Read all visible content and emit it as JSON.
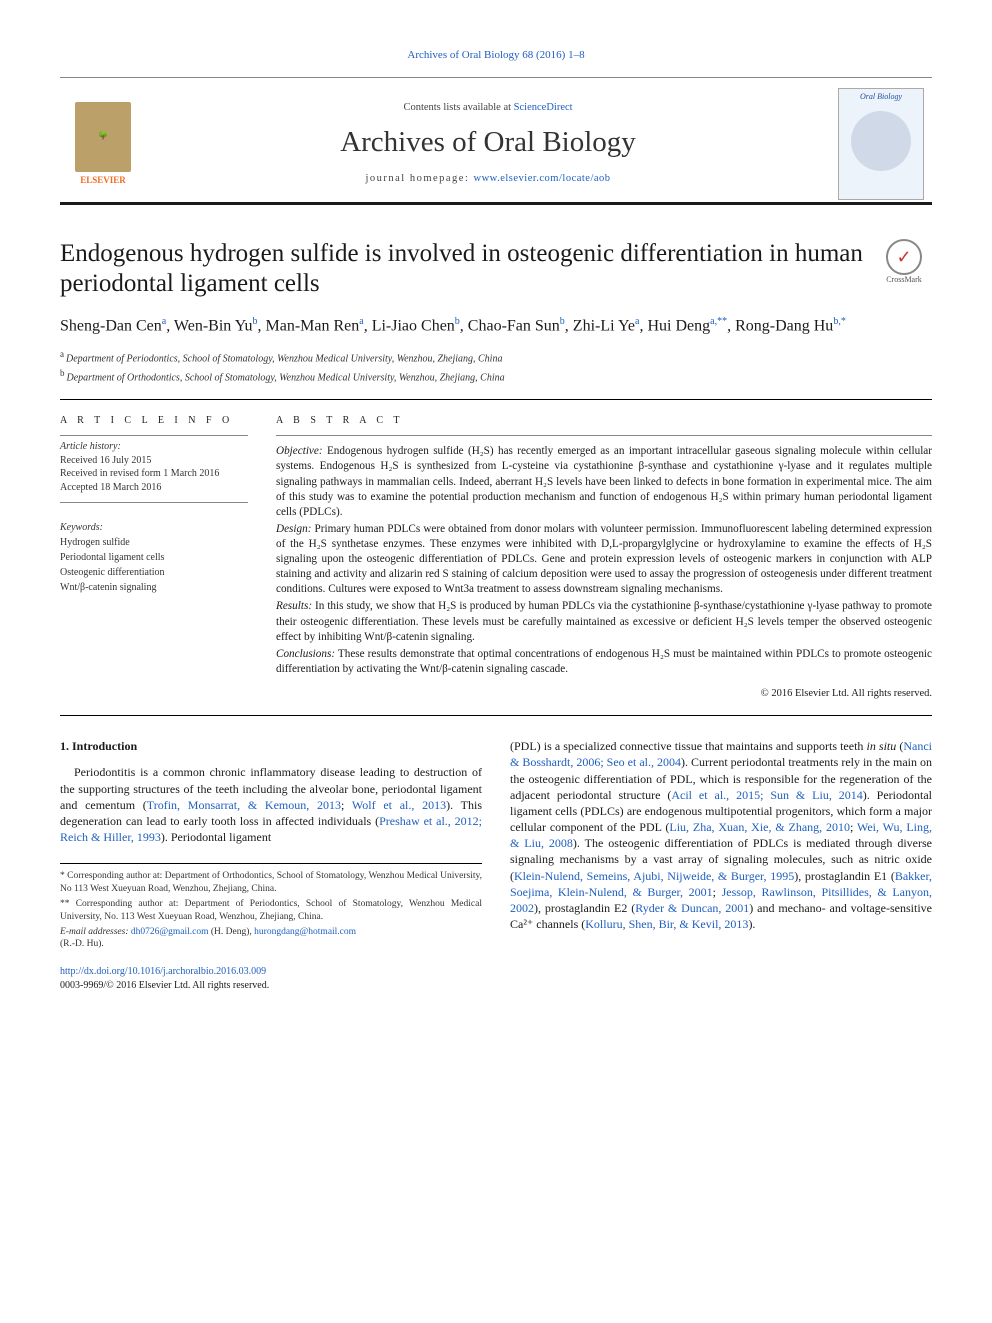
{
  "top_link": "Archives of Oral Biology 68 (2016) 1–8",
  "header": {
    "sd_prefix": "Contents lists available at ",
    "sd_link": "ScienceDirect",
    "journal_name": "Archives of Oral Biology",
    "home_prefix": "journal homepage: ",
    "home_url": "www.elsevier.com/locate/aob",
    "elsevier_label": "ELSEVIER",
    "cover_label": "Oral Biology"
  },
  "crossmark_label": "CrossMark",
  "title": "Endogenous hydrogen sulfide is involved in osteogenic differentiation in human periodontal ligament cells",
  "authors_html": "Sheng-Dan Cen<sup>a</sup>, Wen-Bin Yu<sup>b</sup>, Man-Man Ren<sup>a</sup>, Li-Jiao Chen<sup>b</sup>, Chao-Fan Sun<sup>b</sup>, Zhi-Li Ye<sup>a</sup>, Hui Deng<sup>a,**</sup>, Rong-Dang Hu<sup>b,*</sup>",
  "affiliations": [
    {
      "sup": "a",
      "text": "Department of Periodontics, School of Stomatology, Wenzhou Medical University, Wenzhou, Zhejiang, China"
    },
    {
      "sup": "b",
      "text": "Department of Orthodontics, School of Stomatology, Wenzhou Medical University, Wenzhou, Zhejiang, China"
    }
  ],
  "article_info": {
    "head": "A R T I C L E  I N F O",
    "history_label": "Article history:",
    "history": [
      "Received 16 July 2015",
      "Received in revised form 1 March 2016",
      "Accepted 18 March 2016"
    ],
    "keywords_label": "Keywords:",
    "keywords": [
      "Hydrogen sulfide",
      "Periodontal ligament cells",
      "Osteogenic differentiation",
      "Wnt/β-catenin signaling"
    ]
  },
  "abstract": {
    "head": "A B S T R A C T",
    "sections": [
      {
        "label": "Objective:",
        "text": "Endogenous hydrogen sulfide (H₂S) has recently emerged as an important intracellular gaseous signaling molecule within cellular systems. Endogenous H₂S is synthesized from L-cysteine via cystathionine β-synthase and cystathionine γ-lyase and it regulates multiple signaling pathways in mammalian cells. Indeed, aberrant H₂S levels have been linked to defects in bone formation in experimental mice. The aim of this study was to examine the potential production mechanism and function of endogenous H₂S within primary human periodontal ligament cells (PDLCs)."
      },
      {
        "label": "Design:",
        "text": "Primary human PDLCs were obtained from donor molars with volunteer permission. Immunofluorescent labeling determined expression of the H₂S synthetase enzymes. These enzymes were inhibited with D,L-propargylglycine or hydroxylamine to examine the effects of H₂S signaling upon the osteogenic differentiation of PDLCs. Gene and protein expression levels of osteogenic markers in conjunction with ALP staining and activity and alizarin red S staining of calcium deposition were used to assay the progression of osteogenesis under different treatment conditions. Cultures were exposed to Wnt3a treatment to assess downstream signaling mechanisms."
      },
      {
        "label": "Results:",
        "text": "In this study, we show that H₂S is produced by human PDLCs via the cystathionine β-synthase/cystathionine γ-lyase pathway to promote their osteogenic differentiation. These levels must be carefully maintained as excessive or deficient H₂S levels temper the observed osteogenic effect by inhibiting Wnt/β-catenin signaling."
      },
      {
        "label": "Conclusions:",
        "text": "These results demonstrate that optimal concentrations of endogenous H₂S must be maintained within PDLCs to promote osteogenic differentiation by activating the Wnt/β-catenin signaling cascade."
      }
    ],
    "copyright": "© 2016 Elsevier Ltd. All rights reserved."
  },
  "body": {
    "section_number": "1. Introduction",
    "left_para": "Periodontitis is a common chronic inflammatory disease leading to destruction of the supporting structures of the teeth including the alveolar bone, periodontal ligament and cementum (<span class=\"ref\">Trofin, Monsarrat, & Kemoun, 2013</span>; <span class=\"ref\">Wolf et al., 2013</span>). This degeneration can lead to early tooth loss in affected individuals (<span class=\"ref\">Preshaw et al., 2012; Reich & Hiller, 1993</span>). Periodontal ligament",
    "right_para": "(PDL) is a specialized connective tissue that maintains and supports teeth <i>in situ</i> (<span class=\"ref\">Nanci & Bosshardt, 2006; Seo et al., 2004</span>). Current periodontal treatments rely in the main on the osteogenic differentiation of PDL, which is responsible for the regeneration of the adjacent periodontal structure (<span class=\"ref\">Acil et al., 2015; Sun & Liu, 2014</span>). Periodontal ligament cells (PDLCs) are endogenous multipotential progenitors, which form a major cellular component of the PDL (<span class=\"ref\">Liu, Zha, Xuan, Xie, & Zhang, 2010</span>; <span class=\"ref\">Wei, Wu, Ling, & Liu, 2008</span>). The osteogenic differentiation of PDLCs is mediated through diverse signaling mechanisms by a vast array of signaling molecules, such as nitric oxide (<span class=\"ref\">Klein-Nulend, Semeins, Ajubi, Nijweide, & Burger, 1995</span>), prostaglandin E1 (<span class=\"ref\">Bakker, Soejima, Klein-Nulend, & Burger, 2001</span>; <span class=\"ref\">Jessop, Rawlinson, Pitsillides, & Lanyon, 2002</span>), prostaglandin E2 (<span class=\"ref\">Ryder & Duncan, 2001</span>) and mechano- and voltage-sensitive Ca²⁺ channels (<span class=\"ref\">Kolluru, Shen, Bir, & Kevil, 2013</span>)."
  },
  "footnotes": {
    "star1": "* Corresponding author at: Department of Orthodontics, School of Stomatology, Wenzhou Medical University, No 113 West Xueyuan Road, Wenzhou, Zhejiang, China.",
    "star2": "** Corresponding author at: Department of Periodontics, School of Stomatology, Wenzhou Medical University, No. 113 West Xueyuan Road, Wenzhou, Zhejiang, China.",
    "email_label": "E-mail addresses:",
    "email1": "dh0726@gmail.com",
    "email1_who": "(H. Deng),",
    "email2": "hurongdang@hotmail.com",
    "email2_who": "(R.-D. Hu)."
  },
  "doi": {
    "url": "http://dx.doi.org/10.1016/j.archoralbio.2016.03.009",
    "issn": "0003-9969/© 2016 Elsevier Ltd. All rights reserved."
  },
  "colors": {
    "link": "#2060c0",
    "elsevier_orange": "#f36b21",
    "text": "#1a1a1a"
  }
}
